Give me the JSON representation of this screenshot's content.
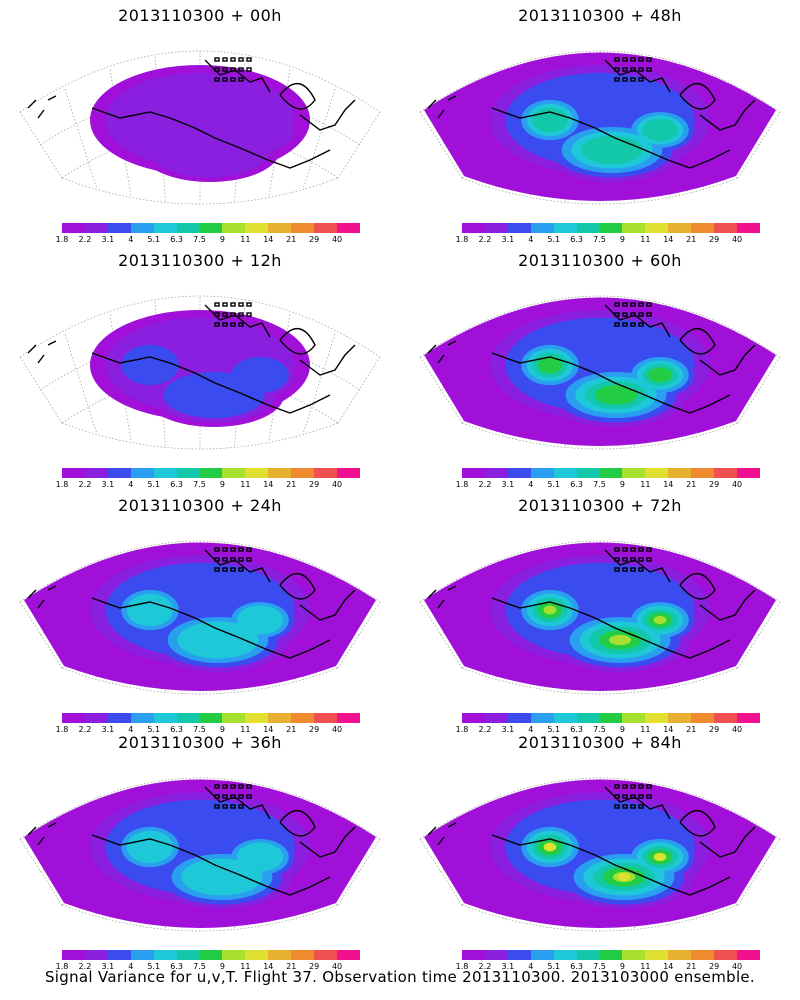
{
  "panels": [
    {
      "title": "2013110300 + 00h"
    },
    {
      "title": "2013110300 + 48h"
    },
    {
      "title": "2013110300 + 12h"
    },
    {
      "title": "2013110300 + 60h"
    },
    {
      "title": "2013110300 + 24h"
    },
    {
      "title": "2013110300 + 72h"
    },
    {
      "title": "2013110300 + 36h"
    },
    {
      "title": "2013110300 + 84h"
    }
  ],
  "colorbar": {
    "colors": [
      "#a010d8",
      "#8a1fe0",
      "#3a4cf0",
      "#2a9ff0",
      "#1ec8d8",
      "#12c8a8",
      "#22cc44",
      "#a8e030",
      "#e0e030",
      "#e8b030",
      "#f08a30",
      "#f05050",
      "#f01090"
    ],
    "labels": [
      "1.8",
      "2.2",
      "3.1",
      "4",
      "5.1",
      "6.3",
      "7.5",
      "9",
      "11",
      "14",
      "21",
      "29",
      "40"
    ]
  },
  "footer": "Signal Variance for u,v,T. Flight 37. Observation time 2013110300. 2013103000 ensemble."
}
